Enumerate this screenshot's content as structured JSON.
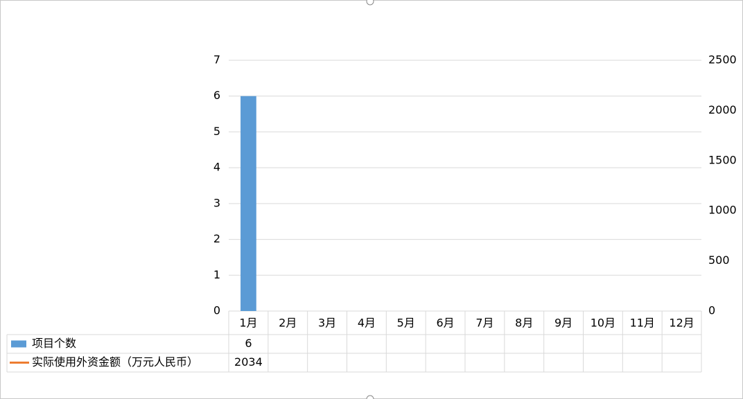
{
  "chart_data": {
    "type": "bar",
    "categories": [
      "1月",
      "2月",
      "3月",
      "4月",
      "5月",
      "6月",
      "7月",
      "8月",
      "9月",
      "10月",
      "11月",
      "12月"
    ],
    "series": [
      {
        "name": "项目个数",
        "color": "#5b9bd5",
        "values": [
          6,
          null,
          null,
          null,
          null,
          null,
          null,
          null,
          null,
          null,
          null,
          null
        ]
      },
      {
        "name": "实际使用外资金额（万元人民币）",
        "color": "#ed7d31",
        "axis": "y2",
        "type": "line",
        "values": [
          2034,
          null,
          null,
          null,
          null,
          null,
          null,
          null,
          null,
          null,
          null,
          null
        ]
      }
    ],
    "ylim": [
      0,
      7
    ],
    "yticks": [
      0,
      1,
      2,
      3,
      4,
      5,
      6,
      7
    ],
    "y2lim": [
      0,
      2500
    ],
    "y2ticks": [
      0,
      500,
      1000,
      1500,
      2000,
      2500
    ],
    "grid": true,
    "data_table": true
  }
}
